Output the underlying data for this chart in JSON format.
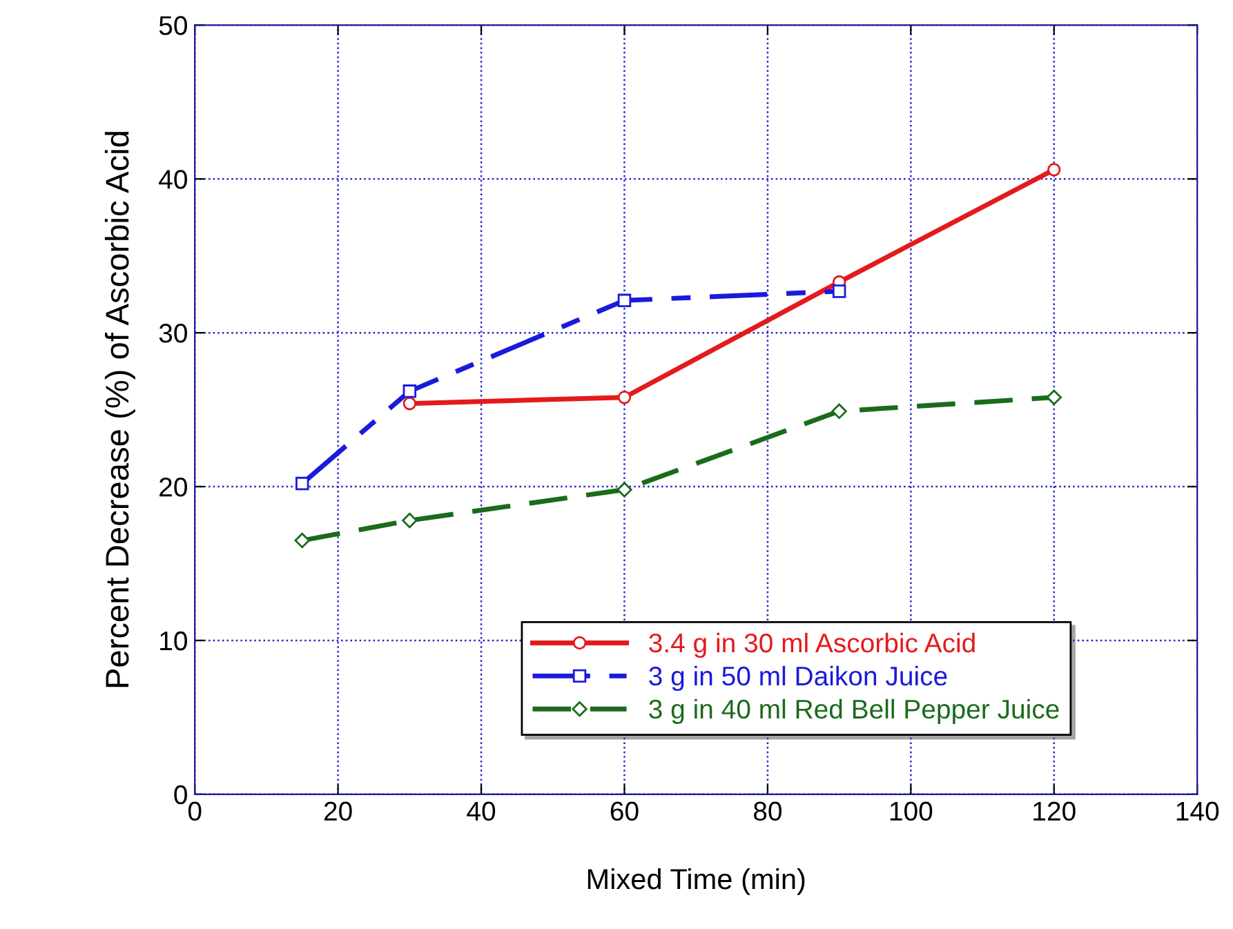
{
  "chart_data": {
    "type": "line",
    "xlabel": "Mixed Time (min)",
    "ylabel": "Percent Decrease (%) of Ascorbic Acid",
    "xlim": [
      0,
      140
    ],
    "xticks": [
      0,
      20,
      40,
      60,
      80,
      100,
      120,
      140
    ],
    "ylim": [
      0,
      50
    ],
    "yticks": [
      0,
      10,
      20,
      30,
      40,
      50
    ],
    "grid": true,
    "legend": "bottom",
    "series": [
      {
        "name": "3.4 g in 30 ml Ascorbic Acid",
        "color": "#e41a1c",
        "x": [
          30,
          60,
          90,
          120
        ],
        "values": [
          25.4,
          25.8,
          33.3,
          40.6
        ],
        "marker": "circle",
        "line_style": "solid"
      },
      {
        "name": "3 g in 50 ml Daikon Juice",
        "color": "#1a1adc",
        "x": [
          15,
          30,
          60,
          90
        ],
        "values": [
          20.2,
          26.2,
          32.1,
          32.7
        ],
        "marker": "square",
        "line_style": "dashdot"
      },
      {
        "name": "3 g in 40 ml Red Bell Pepper Juice",
        "color": "#1a6b1a",
        "x": [
          15,
          30,
          60,
          90,
          120
        ],
        "values": [
          16.5,
          17.8,
          19.8,
          24.9,
          25.8
        ],
        "marker": "diamond",
        "line_style": "dashed"
      }
    ]
  }
}
